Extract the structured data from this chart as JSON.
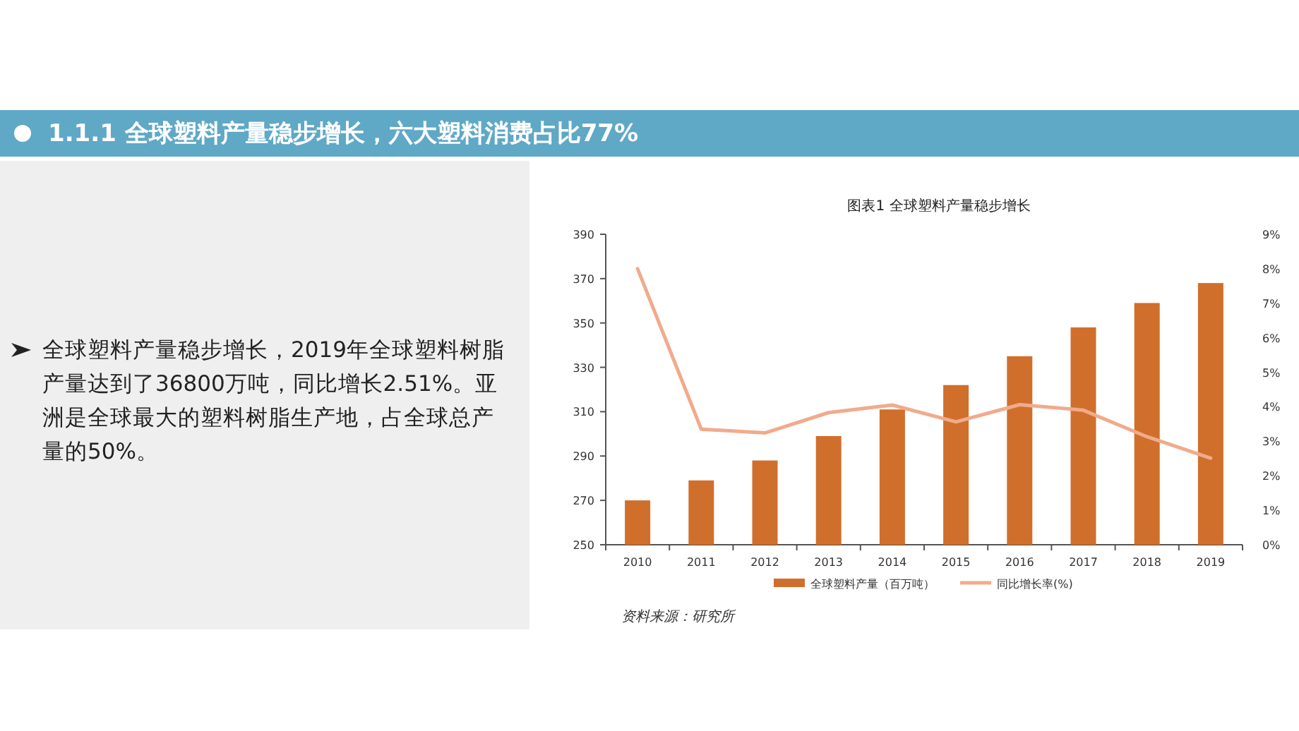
{
  "chart_data": {
    "type": "bar",
    "title": "1.1.1 全球塑料产量稳步增长，六大塑料消费占比77%",
    "subtitle": "图表1 全球塑料产量稳步增长",
    "categories": [
      "2010",
      "2011",
      "2012",
      "2013",
      "2014",
      "2015",
      "2016",
      "2017",
      "2018",
      "2019"
    ],
    "series": [
      {
        "name": "全球塑料产量（百万吨）",
        "color": "#d06f2c",
        "values": [
          270,
          279,
          288,
          299,
          311,
          322,
          335,
          348,
          359,
          368
        ]
      },
      {
        "name": "同比增长率(%)",
        "type": "line",
        "axis": "y2",
        "color": "#f0ab8c",
        "values": [
          8.0,
          3.35,
          3.24,
          3.83,
          4.05,
          3.56,
          4.06,
          3.9,
          3.13,
          2.51
        ]
      }
    ],
    "ylim": [
      250,
      390
    ],
    "yticks": [
      250,
      270,
      290,
      310,
      330,
      350,
      370,
      390
    ],
    "y2lim": [
      0,
      9
    ],
    "y2ticks": [
      {
        "value": 0,
        "label": "0%"
      },
      {
        "value": 1,
        "label": "1%"
      },
      {
        "value": 2,
        "label": "2%"
      },
      {
        "value": 3,
        "label": "3%"
      },
      {
        "value": 4,
        "label": "4%"
      },
      {
        "value": 5,
        "label": "5%"
      },
      {
        "value": 6,
        "label": "6%"
      },
      {
        "value": 7,
        "label": "7%"
      },
      {
        "value": 8,
        "label": "8%"
      },
      {
        "value": 9,
        "label": "9%"
      }
    ],
    "legend": "bottom",
    "annotations": [
      "全球塑料产量稳步增长，2019年全球塑料树脂产量达到了36800万吨，同比增长2.51%。亚洲是全球最大的塑料树脂生产地，占全球总产量的50%。",
      "资料来源：研究所"
    ]
  }
}
